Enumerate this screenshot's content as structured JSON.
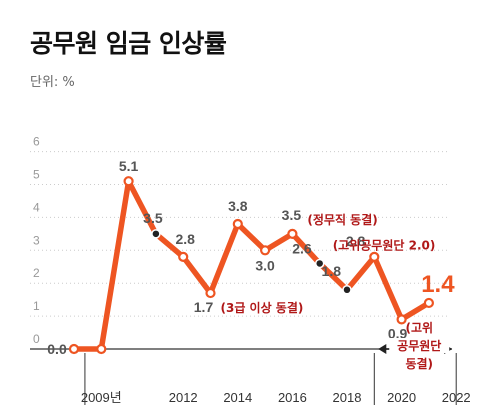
{
  "title": "공무원 임금 인상률",
  "unit_label": "단위: %",
  "colors": {
    "line": "#ee5522",
    "zero_line": "#555555",
    "note": "#b01818",
    "highlight": "#ee5522",
    "value_label": "#555555"
  },
  "chart_data": {
    "type": "line",
    "title": "공무원 임금 인상률",
    "ylabel": "단위: %",
    "ylim": [
      0,
      6
    ],
    "xlim": [
      2008,
      2022
    ],
    "yticks": [
      "0",
      "1",
      "2",
      "3",
      "4",
      "5",
      "6"
    ],
    "xticks": [
      {
        "x": 2009,
        "label": "2009년"
      },
      {
        "x": 2012,
        "label": "2012"
      },
      {
        "x": 2014,
        "label": "2014"
      },
      {
        "x": 2016,
        "label": "2016"
      },
      {
        "x": 2018,
        "label": "2018"
      },
      {
        "x": 2020,
        "label": "2020"
      },
      {
        "x": 2022,
        "label": "2022"
      }
    ],
    "grid": "dotted horizontal",
    "series": [
      {
        "x": [
          2008,
          2009,
          2010,
          2011,
          2012,
          2013,
          2014,
          2015,
          2016,
          2017,
          2018,
          2019,
          2020,
          2021,
          2022
        ],
        "values": [
          0.0,
          0.0,
          5.1,
          3.5,
          2.8,
          1.7,
          3.8,
          3.0,
          3.5,
          2.6,
          1.8,
          2.8,
          0.9,
          1.4,
          null
        ]
      }
    ],
    "data_labels": [
      "0.0",
      "",
      "5.1",
      "3.5",
      "2.8",
      "1.7",
      "3.8",
      "3.0",
      "3.5",
      "2.6",
      "1.8",
      "2.8",
      "0.9",
      "1.4"
    ],
    "annotations": [
      {
        "x": 2014,
        "text": "(3급 이상 동결)"
      },
      {
        "x": 2018,
        "text": "(정무직 동결)"
      },
      {
        "x": 2019,
        "text": "(고위공무원단 2.0)"
      },
      {
        "x_range": [
          2020,
          2022
        ],
        "lines": [
          "(고위",
          "공무원단",
          "동결)"
        ]
      }
    ]
  }
}
